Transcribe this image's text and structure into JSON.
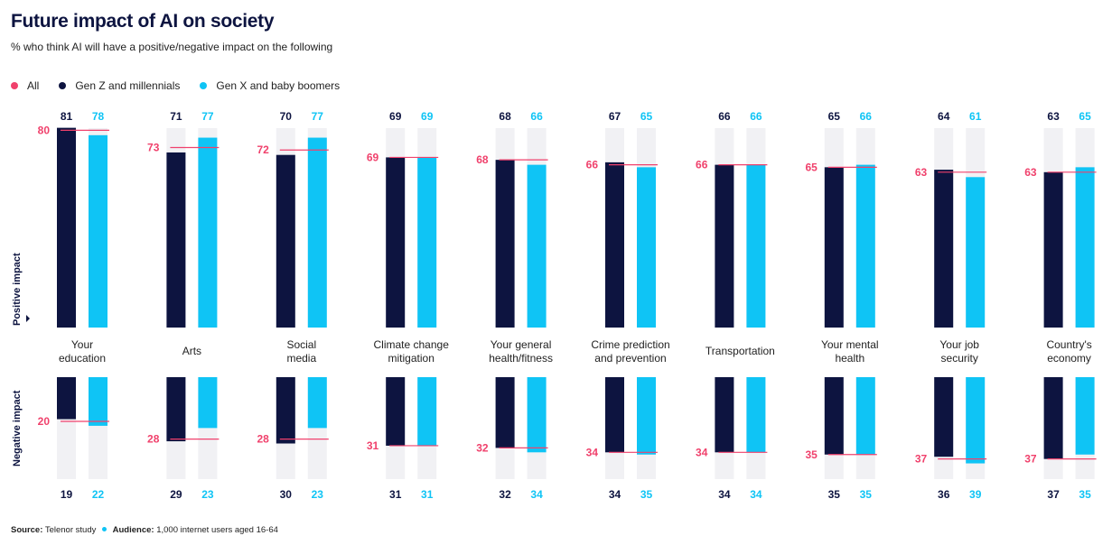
{
  "title": "Future impact of AI on society",
  "subtitle": "% who think AI will have a positive/negative impact on the following",
  "legend": [
    {
      "label": "All",
      "color": "#f0416c"
    },
    {
      "label": "Gen Z and millennials",
      "color": "#0d1440"
    },
    {
      "label": "Gen X and baby boomers",
      "color": "#0fc4f5"
    }
  ],
  "footer": {
    "source_label": "Source:",
    "source_value": "Telenor study",
    "audience_label": "Audience:",
    "audience_value": "1,000 internet users aged 16-64"
  },
  "chart_data": {
    "type": "bar",
    "positive_axis_label": "Positive impact",
    "negative_axis_label": "Negative impact",
    "categories": [
      [
        "Your",
        "education"
      ],
      [
        "Arts"
      ],
      [
        "Social",
        "media"
      ],
      [
        "Climate change",
        "mitigation"
      ],
      [
        "Your general",
        "health/fitness"
      ],
      [
        "Crime prediction",
        "and prevention"
      ],
      [
        "Transportation"
      ],
      [
        "Your mental",
        "health"
      ],
      [
        "Your job",
        "security"
      ],
      [
        "Country's",
        "economy"
      ]
    ],
    "positive": {
      "all": [
        80,
        73,
        72,
        69,
        68,
        66,
        66,
        65,
        63,
        63
      ],
      "gen_z_millennials": [
        81,
        71,
        70,
        69,
        68,
        67,
        66,
        65,
        64,
        63
      ],
      "gen_x_boomers": [
        78,
        77,
        77,
        69,
        66,
        65,
        66,
        66,
        61,
        65
      ]
    },
    "negative": {
      "all": [
        20,
        28,
        28,
        31,
        32,
        34,
        34,
        35,
        37,
        37
      ],
      "gen_z_millennials": [
        19,
        29,
        30,
        31,
        32,
        34,
        34,
        35,
        36,
        37
      ],
      "gen_x_boomers": [
        22,
        23,
        23,
        31,
        34,
        35,
        34,
        35,
        39,
        35
      ]
    },
    "colors": {
      "all": "#f0416c",
      "gen_z_millennials": "#0d1440",
      "gen_x_boomers": "#0fc4f5",
      "track": "#f1f1f4"
    }
  }
}
